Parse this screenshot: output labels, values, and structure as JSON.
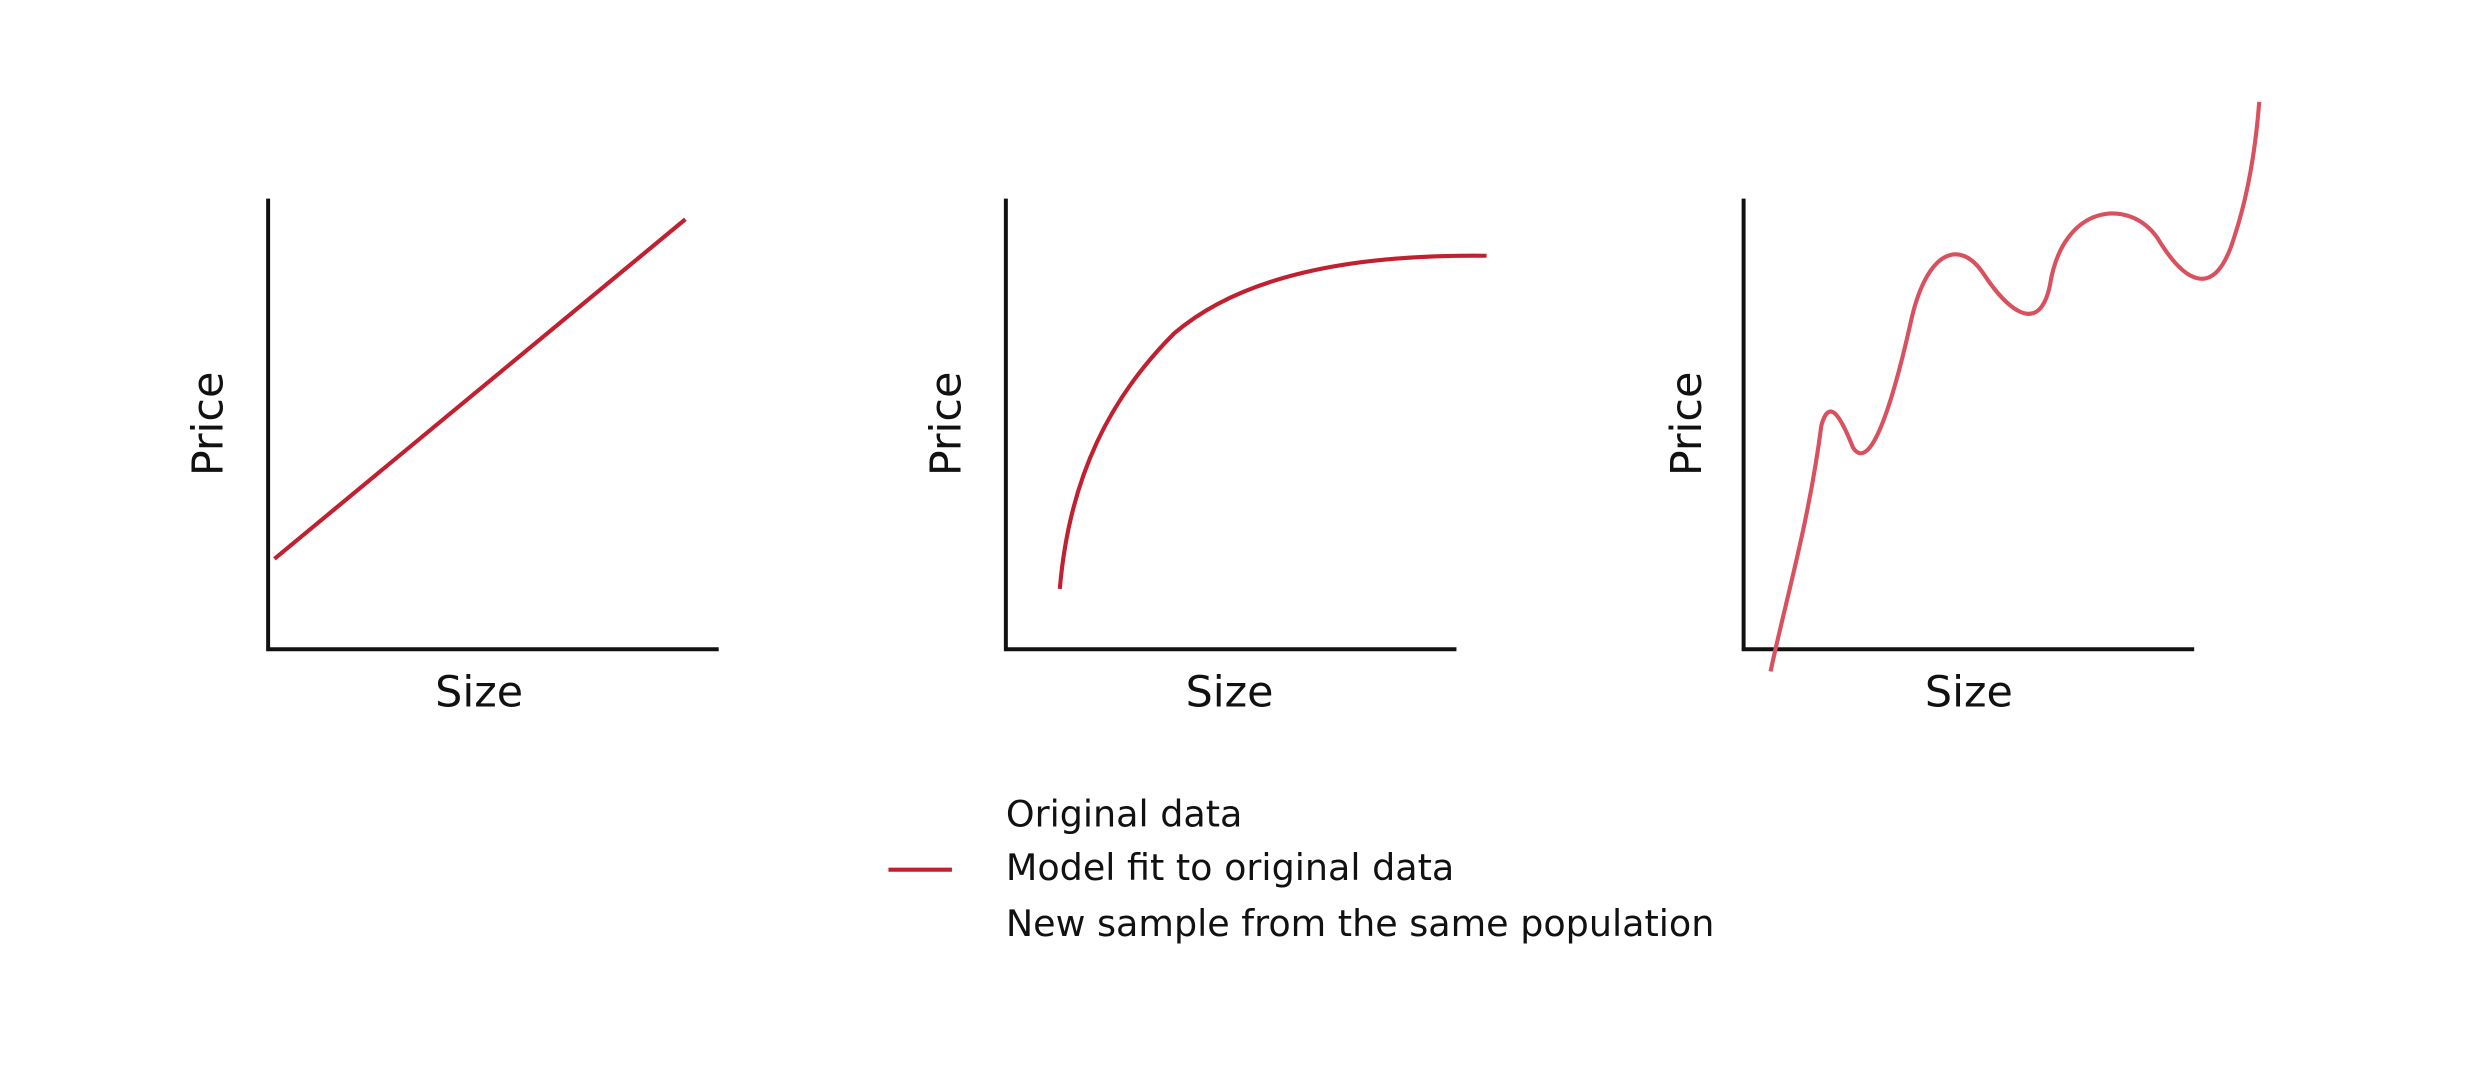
{
  "panels": [
    {
      "y_label": "Price",
      "x_label": "Size"
    },
    {
      "y_label": "Price",
      "x_label": "Size"
    },
    {
      "y_label": "Price",
      "x_label": "Size"
    }
  ],
  "legend": [
    "Original data",
    "Model fit to original data",
    "New sample from the same population"
  ]
}
